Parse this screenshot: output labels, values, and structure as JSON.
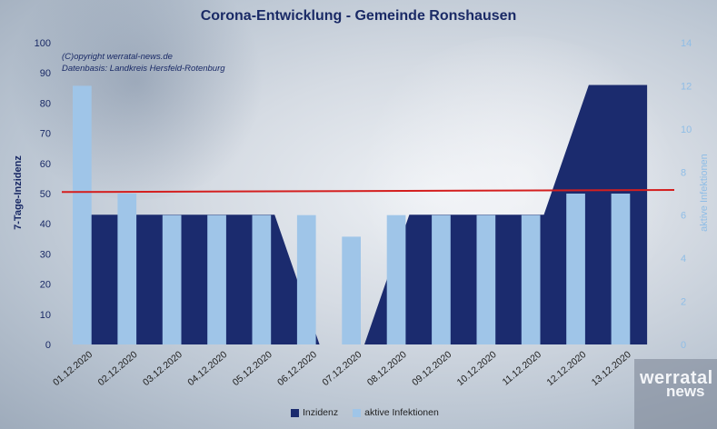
{
  "title": "Corona-Entwicklung - Gemeinde Ronshausen",
  "copyright_line1": "(C)opyright werratal-news.de",
  "copyright_line2": "Datenbasis: Landkreis Hersfeld-Rotenburg",
  "logo": {
    "line1": "werratal",
    "line2": "news"
  },
  "colors": {
    "inzidenz": "#1b2b6e",
    "aktive": "#9fc5e8",
    "threshold": "#d41f1f",
    "left_axis_text": "#1a2a66",
    "right_axis_text": "#8fbde6"
  },
  "chart_data": {
    "type": "bar+area",
    "title": "Corona-Entwicklung - Gemeinde Ronshausen",
    "categories": [
      "01.12.2020",
      "02.12.2020",
      "03.12.2020",
      "04.12.2020",
      "05.12.2020",
      "06.12.2020",
      "07.12.2020",
      "08.12.2020",
      "09.12.2020",
      "10.12.2020",
      "11.12.2020",
      "12.12.2020",
      "13.12.2020"
    ],
    "left_axis": {
      "label": "7-Tage-Inzidenz",
      "ylim": [
        0,
        100
      ],
      "ticks": [
        0,
        10,
        20,
        30,
        40,
        50,
        60,
        70,
        80,
        90,
        100
      ]
    },
    "right_axis": {
      "label": "aktive Infektionen",
      "ylim": [
        0,
        14
      ],
      "ticks": [
        0,
        2,
        4,
        6,
        8,
        10,
        12,
        14
      ]
    },
    "series": [
      {
        "name": "Inzidenz",
        "type": "area",
        "axis": "left",
        "values": [
          43,
          43,
          43,
          43,
          43,
          0,
          0,
          43,
          43,
          43,
          43,
          86,
          86
        ]
      },
      {
        "name": "aktive Infektionen",
        "type": "bar",
        "axis": "right",
        "values": [
          12,
          7,
          6,
          6,
          6,
          6,
          5,
          6,
          6,
          6,
          6,
          7,
          7
        ]
      }
    ],
    "threshold": {
      "axis": "left",
      "value_start": 50.5,
      "value_end": 51.2,
      "color": "#d41f1f"
    },
    "legend_position": "bottom",
    "grid": false
  }
}
